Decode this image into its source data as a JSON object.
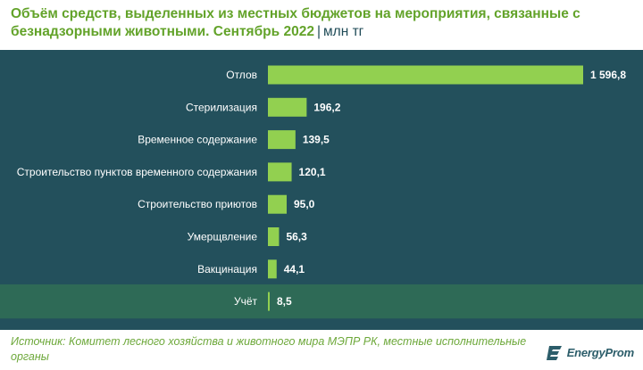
{
  "title": {
    "main": "Объём средств, выделенных из местных бюджетов на мероприятия, связанные с безнадзорными животными. Сентябрь 2022",
    "separator": "|",
    "unit": "млн тг"
  },
  "source": "Источник: Комитет лесного хозяйства и животного мира МЭПР РК, местные исполнительные органы",
  "logo": {
    "text": "EnergyProm",
    "icon": "energyprom-logo-icon"
  },
  "colors": {
    "bar": "#92d050",
    "panel": "#23505c",
    "highlight_row": "#2e6a56",
    "title": "#63a32a"
  },
  "chart_data": {
    "type": "bar",
    "orientation": "horizontal",
    "categories": [
      "Отлов",
      "Стерилизация",
      "Временное содержание",
      "Строительство пунктов временного содержания",
      "Строительство приютов",
      "Умерщвление",
      "Вакцинация",
      "Учёт"
    ],
    "values": [
      1596.8,
      196.2,
      139.5,
      120.1,
      95.0,
      56.3,
      44.1,
      8.5
    ],
    "value_labels": [
      "1 596,8",
      "196,2",
      "139,5",
      "120,1",
      "95,0",
      "56,3",
      "44,1",
      "8,5"
    ],
    "xlim": [
      0,
      1596.8
    ],
    "highlighted_category": "Учёт",
    "grid": false,
    "legend": "none"
  }
}
